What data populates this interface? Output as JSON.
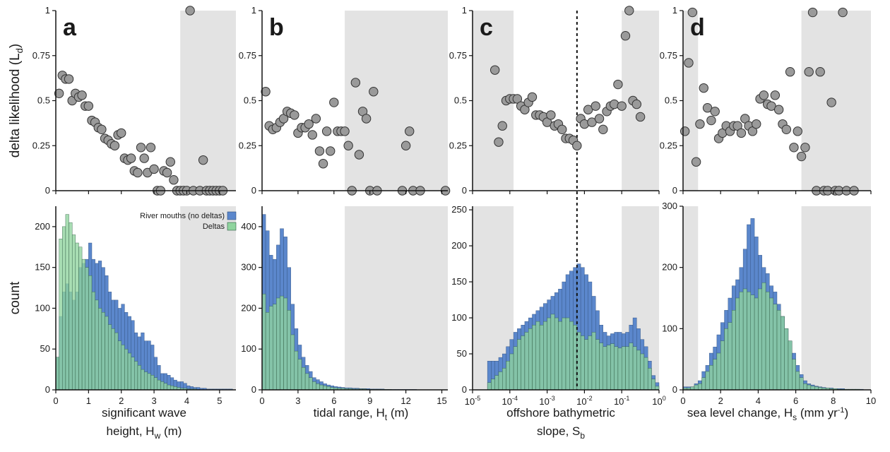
{
  "colors": {
    "river": "#5b87cc",
    "delta": "#8fd49e",
    "overlap": "#5fae92",
    "dot": "#9a9a9a",
    "dot_edge": "#333333",
    "shade": "#e3e3e3"
  },
  "legend": {
    "river": "River mouths (no deltas)",
    "delta": "Deltas"
  },
  "chart_data": [
    {
      "id": "a",
      "type": "scatter+histogram",
      "letter": "a",
      "ylabel_top": "delta likelihood (L",
      "ylabel_top_sub": "d",
      "ylabel_top_end": ")",
      "ylabel_bottom": "count",
      "xlabel_lines": [
        [
          "significant wave",
          "",
          ""
        ],
        [
          "height, H",
          "w",
          " (m)"
        ]
      ],
      "xlim": [
        0,
        5.5
      ],
      "xticks": [
        0,
        1,
        2,
        3,
        4,
        5
      ],
      "xticklabels": [
        "0",
        "1",
        "2",
        "3",
        "4",
        "5"
      ],
      "ylim_top": [
        0,
        1
      ],
      "yticks_top": [
        0,
        0.25,
        0.5,
        0.75,
        1
      ],
      "yticklabels_top": [
        "0",
        "0.25",
        "0.5",
        "0.75",
        "1"
      ],
      "ylim_bottom": [
        0,
        225
      ],
      "yticks_bottom": [
        0,
        50,
        100,
        150,
        200
      ],
      "yticklabels_bottom": [
        "0",
        "50",
        "100",
        "150",
        "200"
      ],
      "shade": [
        [
          3.8,
          5.5
        ]
      ],
      "scatter_x": [
        0.1,
        0.2,
        0.3,
        0.4,
        0.5,
        0.6,
        0.7,
        0.8,
        0.9,
        1.0,
        1.1,
        1.2,
        1.3,
        1.4,
        1.5,
        1.6,
        1.7,
        1.8,
        1.9,
        2.0,
        2.1,
        2.2,
        2.3,
        2.4,
        2.5,
        2.6,
        2.7,
        2.8,
        2.9,
        3.0,
        3.1,
        3.2,
        3.3,
        3.4,
        3.5,
        3.6,
        3.7,
        3.8,
        3.9,
        4.0,
        4.1,
        4.2,
        4.4,
        4.5,
        4.6,
        4.7,
        4.8,
        4.9,
        5.0,
        5.1
      ],
      "scatter_y": [
        0.54,
        0.64,
        0.62,
        0.62,
        0.5,
        0.54,
        0.52,
        0.53,
        0.47,
        0.47,
        0.39,
        0.38,
        0.35,
        0.34,
        0.29,
        0.28,
        0.26,
        0.25,
        0.31,
        0.32,
        0.18,
        0.17,
        0.18,
        0.11,
        0.1,
        0.24,
        0.18,
        0.1,
        0.24,
        0.12,
        0.0,
        0.0,
        0.11,
        0.1,
        0.16,
        0.06,
        0.0,
        0.0,
        0.0,
        0.0,
        1.0,
        0.0,
        0.0,
        0.17,
        0.0,
        0.0,
        0.0,
        0.0,
        0.0,
        0.0
      ],
      "hist_edges_start": 0,
      "hist_bin_width": 0.1,
      "hist_river": [
        40,
        90,
        120,
        130,
        120,
        110,
        120,
        150,
        155,
        160,
        180,
        160,
        155,
        158,
        150,
        140,
        120,
        110,
        110,
        100,
        105,
        95,
        90,
        85,
        70,
        65,
        70,
        60,
        60,
        55,
        40,
        30,
        20,
        20,
        18,
        15,
        12,
        10,
        10,
        8,
        5,
        4,
        3,
        3,
        2,
        2,
        1,
        1,
        1,
        1,
        1,
        1,
        1,
        1,
        0
      ],
      "hist_delta": [
        40,
        185,
        200,
        215,
        205,
        190,
        180,
        175,
        160,
        150,
        140,
        120,
        110,
        100,
        95,
        90,
        80,
        75,
        70,
        60,
        55,
        50,
        45,
        40,
        35,
        30,
        25,
        22,
        20,
        18,
        15,
        12,
        10,
        8,
        6,
        5,
        4,
        3,
        2,
        2,
        1,
        1,
        1,
        0,
        0,
        0,
        0,
        0,
        0,
        0,
        0,
        0,
        0,
        0,
        0
      ]
    },
    {
      "id": "b",
      "type": "scatter+histogram",
      "letter": "b",
      "xlabel_lines": [
        [
          "tidal range, H",
          "t",
          " (m)"
        ]
      ],
      "xlim": [
        0,
        15.5
      ],
      "xticks": [
        0,
        3,
        6,
        9,
        12,
        15
      ],
      "xticklabels": [
        "0",
        "3",
        "6",
        "9",
        "12",
        "15"
      ],
      "ylim_top": [
        0,
        1
      ],
      "yticks_top": [
        0,
        0.25,
        0.5,
        0.75,
        1
      ],
      "yticklabels_top": [
        "0",
        "0.25",
        "0.5",
        "0.75",
        "1"
      ],
      "ylim_bottom": [
        0,
        450
      ],
      "yticks_bottom": [
        0,
        100,
        200,
        300,
        400
      ],
      "yticklabels_bottom": [
        "0",
        "100",
        "200",
        "300",
        "400"
      ],
      "shade": [
        [
          6.9,
          15.5
        ]
      ],
      "scatter_x": [
        0.3,
        0.6,
        0.9,
        1.2,
        1.5,
        1.8,
        2.1,
        2.4,
        2.7,
        3.0,
        3.3,
        3.6,
        3.9,
        4.2,
        4.5,
        4.8,
        5.1,
        5.4,
        5.7,
        6.0,
        6.3,
        6.6,
        6.9,
        7.2,
        7.5,
        7.8,
        8.1,
        8.4,
        8.7,
        9.0,
        9.3,
        9.6,
        11.7,
        12.0,
        12.3,
        12.6,
        13.2,
        15.3
      ],
      "scatter_y": [
        0.55,
        0.36,
        0.34,
        0.35,
        0.38,
        0.4,
        0.44,
        0.43,
        0.42,
        0.32,
        0.35,
        0.35,
        0.37,
        0.31,
        0.4,
        0.22,
        0.15,
        0.33,
        0.22,
        0.49,
        0.33,
        0.33,
        0.33,
        0.25,
        0.0,
        0.6,
        0.2,
        0.44,
        0.4,
        0.0,
        0.55,
        0.0,
        0.0,
        0.25,
        0.33,
        0.0,
        0.0,
        0.0
      ],
      "hist_edges_start": 0,
      "hist_bin_width": 0.3,
      "hist_river": [
        430,
        390,
        330,
        320,
        355,
        395,
        375,
        300,
        210,
        150,
        110,
        80,
        60,
        45,
        30,
        25,
        20,
        15,
        12,
        10,
        8,
        7,
        6,
        5,
        5,
        4,
        4,
        3,
        3,
        3,
        2,
        2,
        2,
        2,
        1,
        1,
        1,
        1,
        1,
        1,
        1,
        1,
        1,
        0,
        0,
        0,
        0,
        0,
        0,
        0,
        0
      ],
      "hist_delta": [
        235,
        190,
        205,
        210,
        225,
        230,
        225,
        195,
        135,
        95,
        75,
        55,
        40,
        30,
        20,
        15,
        12,
        10,
        8,
        6,
        5,
        4,
        4,
        3,
        3,
        2,
        2,
        2,
        2,
        1,
        1,
        1,
        1,
        1,
        1,
        1,
        0,
        0,
        0,
        0,
        0,
        0,
        0,
        0,
        0,
        0,
        0,
        0,
        0,
        0,
        0
      ]
    },
    {
      "id": "c",
      "type": "scatter+histogram",
      "letter": "c",
      "xscale": "log",
      "xlabel_lines": [
        [
          "offshore bathymetric",
          "",
          ""
        ],
        [
          "slope, S",
          "b",
          ""
        ]
      ],
      "xlim_log10": [
        -5,
        0
      ],
      "xticks_log10": [
        -5,
        -4,
        -3,
        -2,
        -1,
        0
      ],
      "xticklabels_base": "10",
      "xticklabels_exp": [
        "-5",
        "-4",
        "-3",
        "-2",
        "-1",
        "0"
      ],
      "ylim_top": [
        0,
        1
      ],
      "yticks_top": [
        0,
        0.25,
        0.5,
        0.75,
        1
      ],
      "yticklabels_top": [
        "0",
        "0.25",
        "0.5",
        "0.75",
        "1"
      ],
      "ylim_bottom": [
        0,
        255
      ],
      "yticks_bottom": [
        0,
        50,
        100,
        150,
        200,
        250
      ],
      "yticklabels_bottom": [
        "0",
        "50",
        "100",
        "150",
        "200",
        "250"
      ],
      "shade_log10": [
        [
          -5,
          -3.9
        ],
        [
          -1.0,
          0
        ]
      ],
      "dashed_line_log10": -2.2,
      "scatter_log10x": [
        -4.4,
        -4.3,
        -4.2,
        -4.1,
        -4.0,
        -3.9,
        -3.8,
        -3.7,
        -3.6,
        -3.5,
        -3.4,
        -3.3,
        -3.2,
        -3.1,
        -3.0,
        -2.9,
        -2.8,
        -2.7,
        -2.6,
        -2.5,
        -2.4,
        -2.3,
        -2.2,
        -2.1,
        -2.0,
        -1.9,
        -1.8,
        -1.7,
        -1.6,
        -1.5,
        -1.4,
        -1.3,
        -1.2,
        -1.1,
        -1.0,
        -0.9,
        -0.8,
        -0.7,
        -0.6,
        -0.5
      ],
      "scatter_y": [
        0.67,
        0.27,
        0.36,
        0.5,
        0.51,
        0.51,
        0.51,
        0.47,
        0.45,
        0.49,
        0.52,
        0.42,
        0.42,
        0.41,
        0.38,
        0.42,
        0.36,
        0.37,
        0.34,
        0.29,
        0.29,
        0.28,
        0.25,
        0.4,
        0.37,
        0.45,
        0.38,
        0.47,
        0.4,
        0.34,
        0.44,
        0.47,
        0.48,
        0.59,
        0.47,
        0.86,
        1.0,
        0.5,
        0.48,
        0.41
      ],
      "hist_edges_start_log10": -4.6,
      "hist_bin_width_log10": 0.1,
      "hist_river": [
        40,
        40,
        40,
        45,
        50,
        60,
        70,
        80,
        85,
        90,
        95,
        100,
        105,
        110,
        115,
        120,
        125,
        130,
        135,
        140,
        150,
        160,
        165,
        170,
        175,
        170,
        160,
        150,
        130,
        110,
        90,
        80,
        75,
        78,
        80,
        80,
        78,
        80,
        90,
        100,
        85,
        70,
        60,
        40,
        20,
        10
      ],
      "hist_delta": [
        10,
        15,
        20,
        25,
        30,
        40,
        50,
        60,
        70,
        75,
        80,
        85,
        90,
        95,
        90,
        95,
        100,
        105,
        100,
        95,
        100,
        100,
        95,
        90,
        80,
        75,
        70,
        75,
        80,
        70,
        65,
        60,
        62,
        64,
        60,
        58,
        60,
        60,
        65,
        60,
        55,
        50,
        45,
        30,
        15,
        5
      ]
    },
    {
      "id": "d",
      "type": "scatter+histogram",
      "letter": "d",
      "xlabel_lines": [
        [
          "sea level change, H",
          "s",
          " (mm yr",
          "-1",
          ")"
        ]
      ],
      "xlim": [
        0,
        10
      ],
      "xticks": [
        0,
        2,
        4,
        6,
        8,
        10
      ],
      "xticklabels": [
        "0",
        "2",
        "4",
        "6",
        "8",
        "10"
      ],
      "ylim_top": [
        0,
        1
      ],
      "yticks_top": [
        0,
        0.25,
        0.5,
        0.75,
        1
      ],
      "yticklabels_top": [
        "0",
        "0.25",
        "0.5",
        "0.75",
        "1"
      ],
      "ylim_bottom": [
        0,
        300
      ],
      "yticks_bottom": [
        0,
        100,
        200,
        300
      ],
      "yticklabels_bottom": [
        "0",
        "100",
        "200",
        "300"
      ],
      "shade": [
        [
          0,
          0.8
        ],
        [
          6.3,
          10
        ]
      ],
      "scatter_x": [
        0.1,
        0.3,
        0.5,
        0.7,
        0.9,
        1.1,
        1.3,
        1.5,
        1.7,
        1.9,
        2.1,
        2.3,
        2.5,
        2.7,
        2.9,
        3.1,
        3.3,
        3.5,
        3.7,
        3.9,
        4.1,
        4.3,
        4.5,
        4.7,
        4.9,
        5.1,
        5.3,
        5.5,
        5.7,
        5.9,
        6.1,
        6.3,
        6.5,
        6.7,
        6.9,
        7.1,
        7.3,
        7.5,
        7.7,
        7.9,
        8.1,
        8.3,
        8.5,
        8.7,
        9.1
      ],
      "scatter_y": [
        0.33,
        0.71,
        0.99,
        0.16,
        0.37,
        0.57,
        0.46,
        0.39,
        0.44,
        0.29,
        0.32,
        0.36,
        0.33,
        0.36,
        0.36,
        0.32,
        0.4,
        0.36,
        0.33,
        0.37,
        0.51,
        0.53,
        0.48,
        0.47,
        0.53,
        0.45,
        0.37,
        0.34,
        0.66,
        0.24,
        0.33,
        0.19,
        0.24,
        0.66,
        0.99,
        0.0,
        0.66,
        0.0,
        0.0,
        0.49,
        0.0,
        0.0,
        0.99,
        0.0,
        0.0
      ],
      "hist_edges_start": 0,
      "hist_bin_width": 0.2,
      "hist_river": [
        5,
        5,
        5,
        10,
        15,
        30,
        40,
        60,
        70,
        90,
        110,
        130,
        150,
        170,
        180,
        200,
        230,
        270,
        280,
        250,
        220,
        200,
        190,
        170,
        160,
        140,
        120,
        100,
        80,
        60,
        40,
        25,
        15,
        10,
        8,
        6,
        5,
        4,
        3,
        3,
        2,
        2,
        2,
        1,
        1,
        1,
        1,
        1,
        0,
        0
      ],
      "hist_delta": [
        3,
        3,
        5,
        8,
        10,
        20,
        30,
        40,
        50,
        60,
        80,
        100,
        110,
        130,
        150,
        160,
        165,
        160,
        155,
        150,
        165,
        175,
        160,
        150,
        140,
        130,
        120,
        100,
        80,
        50,
        30,
        20,
        10,
        8,
        6,
        5,
        4,
        3,
        3,
        2,
        2,
        1,
        1,
        1,
        1,
        1,
        1,
        0,
        0,
        0
      ]
    }
  ]
}
